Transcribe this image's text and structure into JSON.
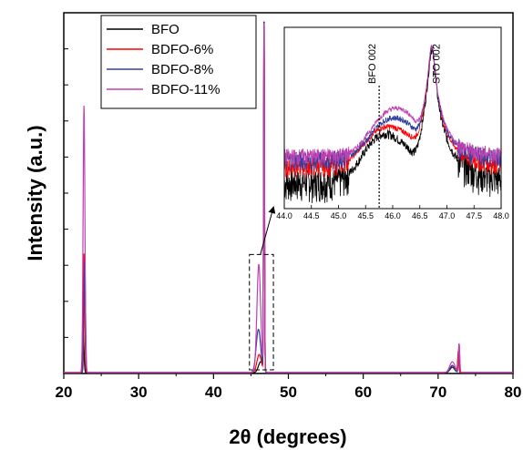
{
  "chart_data": {
    "type": "line",
    "xlabel": "2θ (degrees)",
    "ylabel": "Intensity (a.u.)",
    "xlim": [
      20,
      80
    ],
    "ylim": [
      0,
      100
    ],
    "x_ticks": [
      20,
      30,
      40,
      50,
      60,
      70,
      80
    ],
    "legend": {
      "placement": "top-left"
    },
    "grid": false,
    "series": [
      {
        "name": "BFO",
        "color": "#000000",
        "peaks": [
          {
            "x": 22.6,
            "y": 11,
            "w": 0.1
          },
          {
            "x": 46.3,
            "y": 3,
            "w": 0.3
          },
          {
            "x": 46.75,
            "y": 100,
            "w": 0.06
          },
          {
            "x": 71.9,
            "y": 1.5,
            "w": 0.3
          },
          {
            "x": 72.7,
            "y": 5,
            "w": 0.08
          }
        ]
      },
      {
        "name": "BDFO-6%",
        "color": "#ff0000",
        "peaks": [
          {
            "x": 22.7,
            "y": 33,
            "w": 0.1
          },
          {
            "x": 46.1,
            "y": 5,
            "w": 0.3
          },
          {
            "x": 46.75,
            "y": 100,
            "w": 0.06
          },
          {
            "x": 71.9,
            "y": 2,
            "w": 0.3
          },
          {
            "x": 72.7,
            "y": 6,
            "w": 0.08
          }
        ]
      },
      {
        "name": "BDFO-8%",
        "color": "#3040a0",
        "peaks": [
          {
            "x": 22.8,
            "y": 31,
            "w": 0.1
          },
          {
            "x": 46.0,
            "y": 12,
            "w": 0.3
          },
          {
            "x": 46.75,
            "y": 100,
            "w": 0.06
          },
          {
            "x": 71.9,
            "y": 2,
            "w": 0.3
          },
          {
            "x": 72.8,
            "y": 8,
            "w": 0.08
          }
        ]
      },
      {
        "name": "BDFO-11%",
        "color": "#c040b0",
        "peaks": [
          {
            "x": 22.7,
            "y": 74,
            "w": 0.12
          },
          {
            "x": 46.05,
            "y": 30,
            "w": 0.25
          },
          {
            "x": 46.75,
            "y": 100,
            "w": 0.06
          },
          {
            "x": 71.9,
            "y": 3,
            "w": 0.35
          },
          {
            "x": 72.8,
            "y": 8,
            "w": 0.08
          }
        ]
      }
    ],
    "zoom_box": {
      "x": [
        44.8,
        48.0
      ],
      "y": [
        1,
        33
      ]
    },
    "inset": {
      "type": "line",
      "scale_y": "log",
      "xlim": [
        44.0,
        48.0
      ],
      "x_ticks": [
        "44.0",
        "44.5",
        "45.0",
        "45.5",
        "46.0",
        "46.5",
        "47.0",
        "47.5",
        "48.0"
      ],
      "annotations": [
        {
          "text": "BFO 002",
          "x": 45.75
        },
        {
          "text": "STO 002",
          "x": 46.8
        }
      ],
      "series": [
        {
          "name": "BFO",
          "color": "#000000",
          "base": 0.3,
          "film": {
            "x": 45.85,
            "y": 1.0,
            "w": 0.45
          },
          "dip": 0.04,
          "sub": 40,
          "noise": 0.55
        },
        {
          "name": "BDFO-6%",
          "color": "#ff0000",
          "base": 0.55,
          "film": {
            "x": 45.9,
            "y": 1.2,
            "w": 0.5
          },
          "dip": 0.6,
          "sub": 45,
          "noise": 0.35
        },
        {
          "name": "BDFO-8%",
          "color": "#3040a0",
          "base": 0.7,
          "film": {
            "x": 46.0,
            "y": 1.7,
            "w": 0.5
          },
          "dip": 0.9,
          "sub": 45,
          "noise": 0.35
        },
        {
          "name": "BDFO-11%",
          "color": "#c040b0",
          "base": 0.8,
          "film": {
            "x": 46.05,
            "y": 2.6,
            "w": 0.5
          },
          "dip": 1.5,
          "sub": 45,
          "noise": 0.3
        }
      ]
    }
  }
}
